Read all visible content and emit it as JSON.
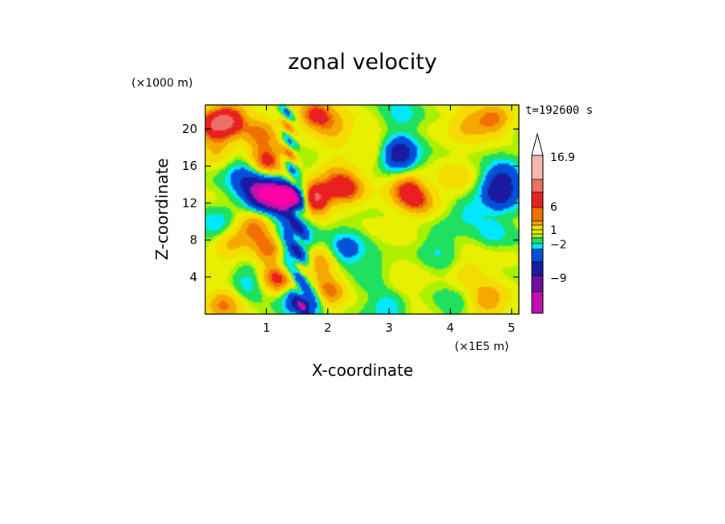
{
  "chart_data": {
    "type": "heatmap",
    "title": "zonal velocity",
    "xlabel": "X-coordinate",
    "ylabel": "Z-coordinate",
    "x_scale_note": "(×1E5 m)",
    "y_scale_note": "(×1000 m)",
    "time_label": "t=192600 s",
    "xlim": [
      0,
      5.12
    ],
    "ylim": [
      0,
      22.6
    ],
    "x_ticks": [
      1,
      2,
      3,
      4,
      5
    ],
    "y_ticks": [
      4,
      8,
      12,
      16,
      20
    ],
    "colorbar": {
      "labels": [
        "16.9",
        "6",
        "1",
        "−2",
        "−9"
      ],
      "colors": [
        "#ffffff",
        "#f5b8ae",
        "#ee6f66",
        "#e82020",
        "#f07000",
        "#f5a800",
        "#f5dc00",
        "#e6f000",
        "#aaf000",
        "#20e060",
        "#00e8ff",
        "#0050d8",
        "#1a1aa0",
        "#7010a0",
        "#c010b0",
        "#ff00a8"
      ],
      "max_open_end": true
    },
    "blobs": [
      {
        "x": 0.12,
        "z": 20.5,
        "v": 6
      },
      {
        "x": 0.4,
        "z": 21.0,
        "v": 7
      },
      {
        "x": 0.9,
        "z": 19.5,
        "v": 4
      },
      {
        "x": 1.8,
        "z": 21.5,
        "v": 6
      },
      {
        "x": 2.1,
        "z": 20.0,
        "v": 3
      },
      {
        "x": 3.2,
        "z": 21.5,
        "v": -2
      },
      {
        "x": 4.7,
        "z": 21.0,
        "v": 5
      },
      {
        "x": 4.3,
        "z": 20.5,
        "v": 3
      },
      {
        "x": 0.2,
        "z": 18.0,
        "v": 3
      },
      {
        "x": 2.9,
        "z": 18.0,
        "v": 2
      },
      {
        "x": 3.15,
        "z": 17.3,
        "v": -9
      },
      {
        "x": 1.0,
        "z": 16.5,
        "v": 6
      },
      {
        "x": 0.65,
        "z": 14.8,
        "v": -5
      },
      {
        "x": 0.95,
        "z": 13.0,
        "v": -13
      },
      {
        "x": 1.3,
        "z": 12.6,
        "v": -12
      },
      {
        "x": 1.45,
        "z": 12.2,
        "v": -8
      },
      {
        "x": 1.75,
        "z": 12.5,
        "v": 11
      },
      {
        "x": 2.3,
        "z": 13.5,
        "v": 6
      },
      {
        "x": 2.1,
        "z": 15.2,
        "v": 3
      },
      {
        "x": 3.3,
        "z": 13.5,
        "v": 6
      },
      {
        "x": 3.5,
        "z": 12.0,
        "v": 4
      },
      {
        "x": 4.05,
        "z": 14.5,
        "v": 2
      },
      {
        "x": 4.8,
        "z": 13.0,
        "v": -7
      },
      {
        "x": 4.85,
        "z": 14.7,
        "v": -5
      },
      {
        "x": 4.3,
        "z": 11.0,
        "v": -2.5
      },
      {
        "x": 4.7,
        "z": 9.0,
        "v": -2.5
      },
      {
        "x": 0.15,
        "z": 9.5,
        "v": -3
      },
      {
        "x": 0.4,
        "z": 7.5,
        "v": 3
      },
      {
        "x": 0.8,
        "z": 9.5,
        "v": 5
      },
      {
        "x": 1.05,
        "z": 7.0,
        "v": 5
      },
      {
        "x": 1.45,
        "z": 8.5,
        "v": -6
      },
      {
        "x": 1.2,
        "z": 4.0,
        "v": 7
      },
      {
        "x": 1.45,
        "z": 5.5,
        "v": -6
      },
      {
        "x": 1.85,
        "z": 5.5,
        "v": 4
      },
      {
        "x": 2.3,
        "z": 7.0,
        "v": -4
      },
      {
        "x": 2.0,
        "z": 2.5,
        "v": 5
      },
      {
        "x": 1.6,
        "z": 1.5,
        "v": -9
      },
      {
        "x": 0.7,
        "z": 3.5,
        "v": -2.5
      },
      {
        "x": 0.3,
        "z": 1.0,
        "v": 4
      },
      {
        "x": 2.8,
        "z": 5.0,
        "v": -1
      },
      {
        "x": 3.2,
        "z": 3.0,
        "v": 1
      },
      {
        "x": 3.0,
        "z": 0.8,
        "v": -3
      },
      {
        "x": 4.6,
        "z": 1.5,
        "v": 4
      },
      {
        "x": 4.3,
        "z": 4.5,
        "v": 2
      },
      {
        "x": 3.8,
        "z": 7.0,
        "v": -1.5
      },
      {
        "x": 4.0,
        "z": 1.0,
        "v": -1
      }
    ]
  }
}
